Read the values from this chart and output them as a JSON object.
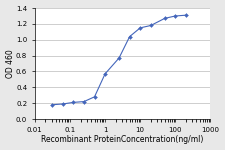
{
  "x": [
    0.031,
    0.063,
    0.125,
    0.25,
    0.5,
    1.0,
    2.5,
    5.0,
    10.0,
    20.0,
    50.0,
    100.0,
    200.0
  ],
  "y": [
    0.18,
    0.19,
    0.21,
    0.22,
    0.28,
    0.57,
    0.77,
    1.04,
    1.15,
    1.18,
    1.27,
    1.3,
    1.31
  ],
  "line_color": "#4466bb",
  "marker_color": "#4466bb",
  "xlabel": "Recombinant ProteinConcentration(ng/ml)",
  "ylabel": "OD 460",
  "xlim": [
    0.01,
    1000
  ],
  "ylim": [
    0,
    1.4
  ],
  "yticks": [
    0,
    0.2,
    0.4,
    0.6,
    0.8,
    1.0,
    1.2,
    1.4
  ],
  "xticks": [
    0.01,
    0.1,
    1,
    10,
    100,
    1000
  ],
  "xticklabels": [
    "0.01",
    "0.1",
    "1",
    "10",
    "100",
    "1000"
  ],
  "background_color": "#e8e8e8",
  "plot_background": "#ffffff",
  "xlabel_fontsize": 5.5,
  "ylabel_fontsize": 5.5,
  "tick_fontsize": 5.0,
  "grid_color": "#bbbbbb",
  "grid_linewidth": 0.5,
  "line_width": 0.8,
  "marker_size": 2.0
}
